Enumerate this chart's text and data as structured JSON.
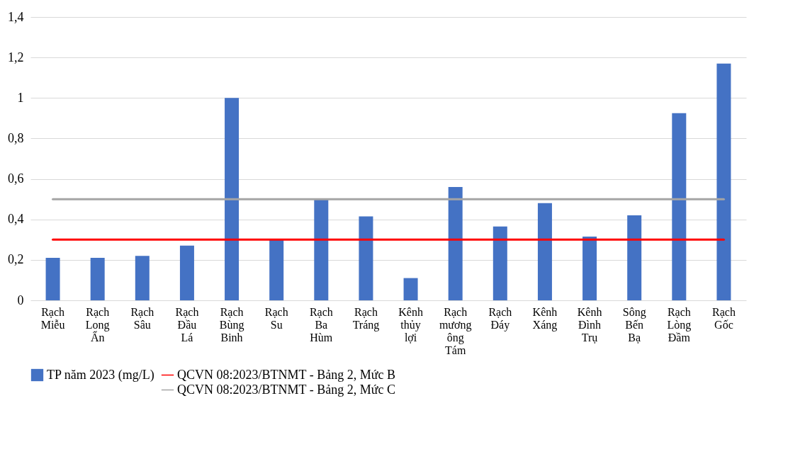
{
  "chart_data": {
    "type": "bar",
    "categories": [
      "Rạch Miễu",
      "Rạch Long Ẩn",
      "Rạch Sâu",
      "Rạch Đầu Lá",
      "Rạch Bùng Binh",
      "Rạch Su",
      "Rạch Ba Hùm",
      "Rạch Tráng",
      "Kênh thủy lợi",
      "Rạch mương ông Tám",
      "Rạch Đáy",
      "Kênh Xáng",
      "Kênh Đình Trụ",
      "Sông Bến Bạ",
      "Rạch Lòng Đầm",
      "Rạch Gốc"
    ],
    "series": [
      {
        "name": "TP năm 2023 (mg/L)",
        "color": "#4472c4",
        "values": [
          0.21,
          0.21,
          0.22,
          0.27,
          1.0,
          0.3,
          0.5,
          0.415,
          0.11,
          0.56,
          0.365,
          0.48,
          0.315,
          0.42,
          0.925,
          1.17
        ]
      },
      {
        "name": "QCVN 08:2023/BTNMT - Bảng 2, Mức B",
        "color": "#ff0000",
        "type": "line",
        "values": [
          0.3,
          0.3,
          0.3,
          0.3,
          0.3,
          0.3,
          0.3,
          0.3,
          0.3,
          0.3,
          0.3,
          0.3,
          0.3,
          0.3,
          0.3,
          0.3
        ]
      },
      {
        "name": "QCVN 08:2023/BTNMT - Bảng 2, Mức C",
        "color": "#a5a5a5",
        "type": "line",
        "values": [
          0.5,
          0.5,
          0.5,
          0.5,
          0.5,
          0.5,
          0.5,
          0.5,
          0.5,
          0.5,
          0.5,
          0.5,
          0.5,
          0.5,
          0.5,
          0.5
        ]
      }
    ],
    "ylim": [
      0,
      1.4
    ],
    "yticks": [
      0,
      {
        "value": 0.2,
        "label": "0,2"
      },
      {
        "value": 0.4,
        "label": "0,4"
      },
      {
        "value": 0.6,
        "label": "0,6"
      },
      {
        "value": 0.8,
        "label": "0,8"
      },
      1,
      {
        "value": 1.2,
        "label": "1,2"
      },
      {
        "value": 1.4,
        "label": "1,4"
      }
    ],
    "grid": "y",
    "legend": "bottom",
    "marker": "none",
    "line_style": "solid"
  }
}
